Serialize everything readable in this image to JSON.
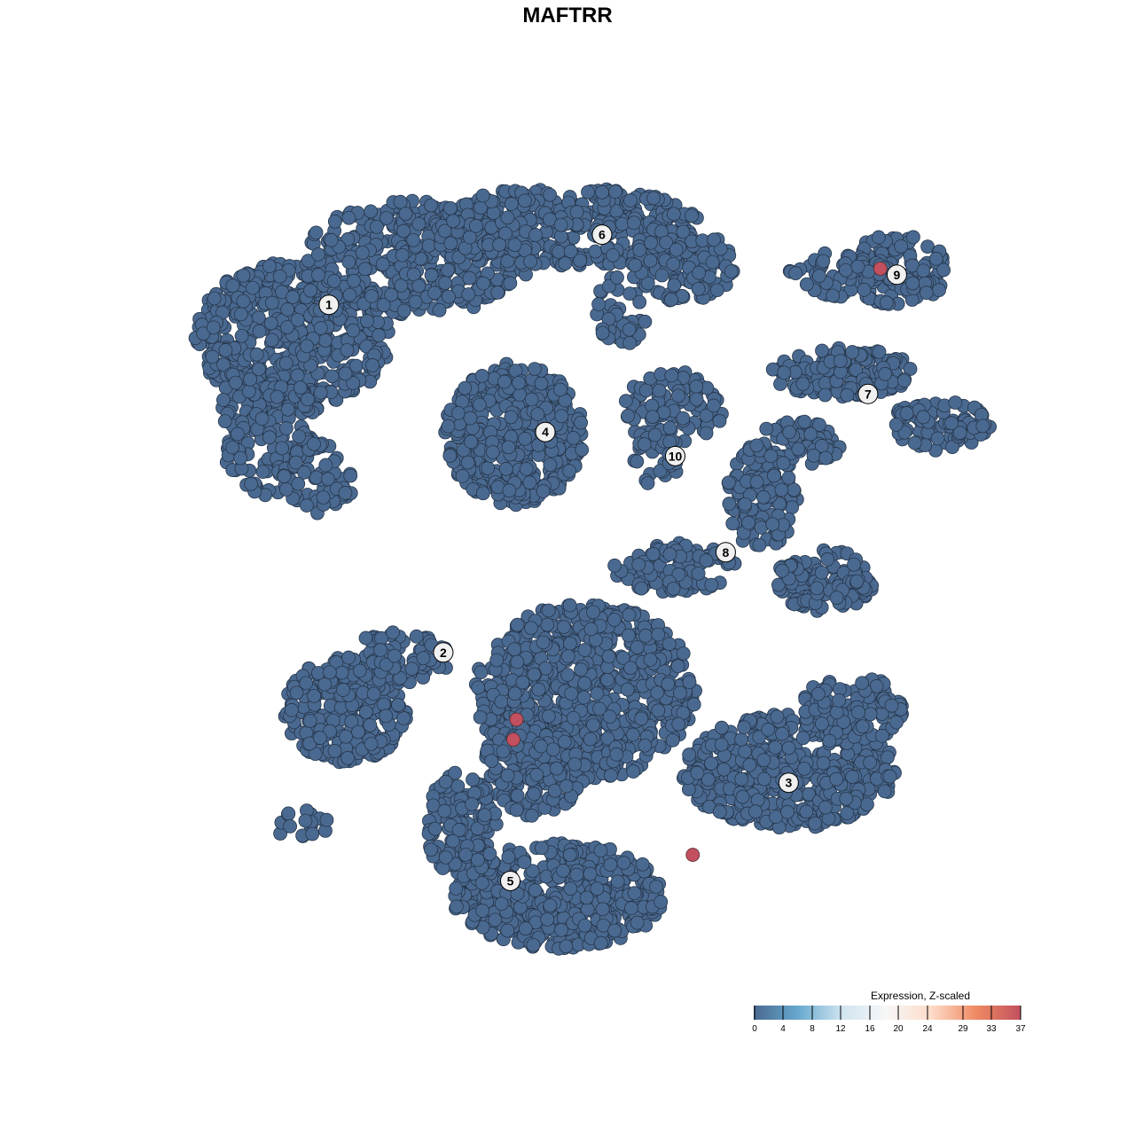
{
  "chart_data": {
    "type": "scatter",
    "title": "MAFTRR",
    "xlabel": "",
    "ylabel": "",
    "grid": false,
    "axes_visible": false,
    "xlim": [
      -40,
      40
    ],
    "ylim": [
      -40,
      40
    ],
    "point_color_base": "#4a6990",
    "point_color_high": "#c2505e",
    "cluster_labels": [
      {
        "label": "1",
        "x": -25.3,
        "y": 26.0
      },
      {
        "label": "6",
        "x": 1.2,
        "y": 33.0
      },
      {
        "label": "9",
        "x": 29.8,
        "y": 29.0
      },
      {
        "label": "7",
        "x": 27.0,
        "y": 17.1
      },
      {
        "label": "4",
        "x": -4.3,
        "y": 13.3
      },
      {
        "label": "10",
        "x": 8.3,
        "y": 10.9
      },
      {
        "label": "8",
        "x": 13.2,
        "y": 1.3
      },
      {
        "label": "2",
        "x": -14.2,
        "y": -8.7
      },
      {
        "label": "3",
        "x": 19.3,
        "y": -21.7
      },
      {
        "label": "5",
        "x": -7.7,
        "y": -31.5
      }
    ],
    "high_expression_points": [
      {
        "x": 28.2,
        "y": 29.6,
        "value": 37
      },
      {
        "x": -7.1,
        "y": -15.4,
        "value": 37
      },
      {
        "x": -7.4,
        "y": -17.4,
        "value": 37
      },
      {
        "x": 10.0,
        "y": -28.9,
        "value": 37
      }
    ],
    "baseline_value": 0,
    "legend": {
      "title": "Expression, Z-scaled",
      "position": "bottom-right",
      "ticks": [
        "0",
        "4",
        "8",
        "12",
        "16",
        "20",
        "24",
        "29",
        "33",
        "37"
      ],
      "colors": [
        "#4a6990",
        "#67a9cf",
        "#d1e5f0",
        "#f7f7f7",
        "#fddbc7",
        "#ef8a62",
        "#c2505e"
      ]
    }
  }
}
